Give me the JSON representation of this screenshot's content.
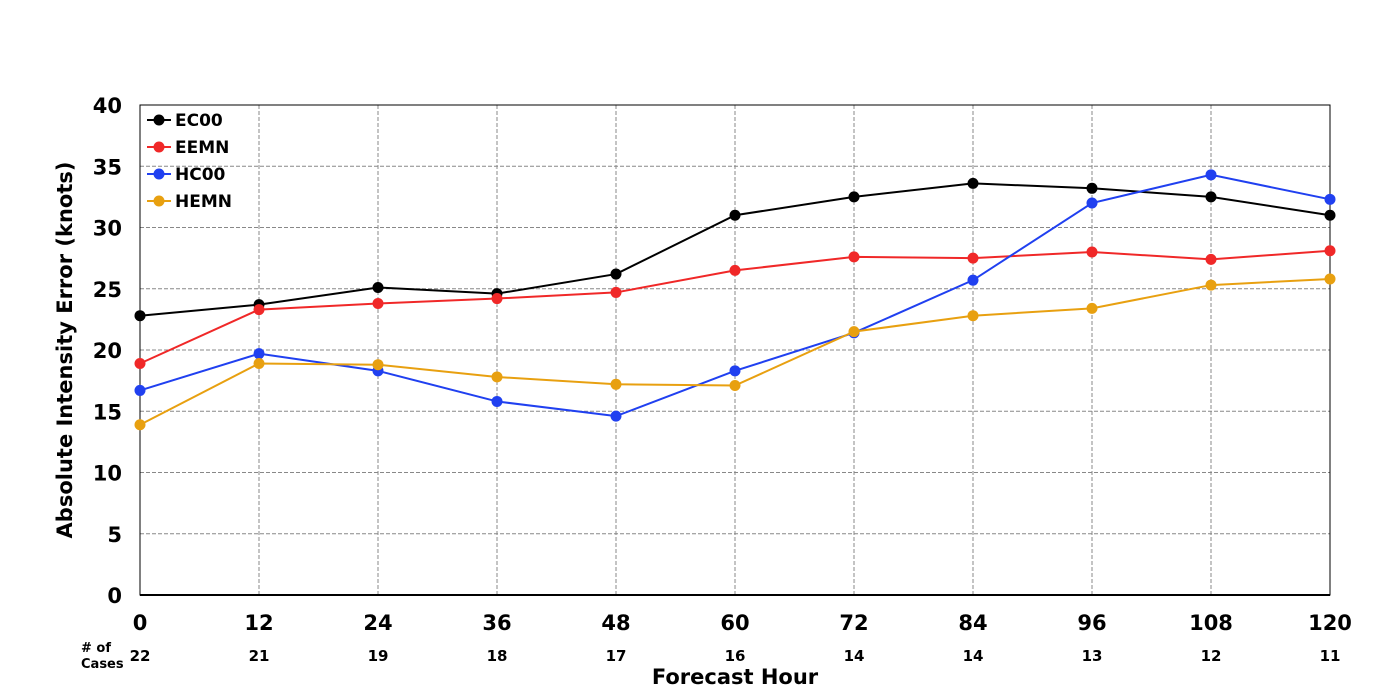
{
  "chart_data": {
    "type": "line",
    "title": "",
    "xlabel": "Forecast Hour",
    "ylabel": "Absolute Intensity Error (knots)",
    "x": [
      0,
      12,
      24,
      36,
      48,
      60,
      72,
      84,
      96,
      108,
      120
    ],
    "xlim": [
      0,
      120
    ],
    "ylim": [
      0,
      40
    ],
    "yticks": [
      0,
      5,
      10,
      15,
      20,
      25,
      30,
      35,
      40
    ],
    "grid": true,
    "legend_position": "top-left",
    "cases_label_line1": "# of",
    "cases_label_line2": "Cases",
    "cases": [
      22,
      21,
      19,
      18,
      17,
      16,
      14,
      14,
      13,
      12,
      11
    ],
    "series": [
      {
        "name": "EC00",
        "color": "#000000",
        "values": [
          22.8,
          23.7,
          25.1,
          24.6,
          26.2,
          31.0,
          32.5,
          33.6,
          33.2,
          32.5,
          31.0
        ]
      },
      {
        "name": "EEMN",
        "color": "#f02828",
        "values": [
          18.9,
          23.3,
          23.8,
          24.2,
          24.7,
          26.5,
          27.6,
          27.5,
          28.0,
          27.4,
          28.1
        ]
      },
      {
        "name": "HC00",
        "color": "#2040f0",
        "values": [
          16.7,
          19.7,
          18.3,
          15.8,
          14.6,
          18.3,
          21.4,
          25.7,
          32.0,
          34.3,
          32.3
        ]
      },
      {
        "name": "HEMN",
        "color": "#e8a010",
        "values": [
          13.9,
          18.9,
          18.8,
          17.8,
          17.2,
          17.1,
          21.5,
          22.8,
          23.4,
          25.3,
          25.8
        ]
      }
    ]
  }
}
